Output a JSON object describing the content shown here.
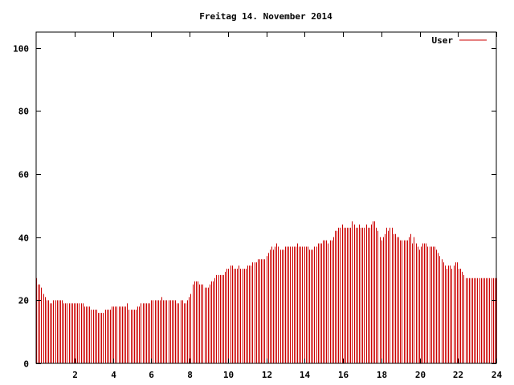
{
  "chart_data": {
    "type": "bar",
    "title": "Freitag 14. November 2014",
    "xlabel": "",
    "ylabel": "",
    "xlim": [
      0,
      24
    ],
    "ylim": [
      0,
      105
    ],
    "x_ticks": [
      2,
      4,
      6,
      8,
      10,
      12,
      14,
      16,
      18,
      20,
      22,
      24
    ],
    "y_ticks": [
      0,
      20,
      40,
      60,
      80,
      100
    ],
    "grid": false,
    "legend_position": "top-right",
    "series": [
      {
        "name": "User",
        "color": "#cc0000",
        "values": [
          27,
          25,
          25,
          24,
          22,
          21,
          20,
          20,
          19,
          19,
          20,
          20,
          20,
          20,
          20,
          20,
          19,
          19,
          19,
          19,
          19,
          19,
          19,
          19,
          19,
          19,
          19,
          19,
          18,
          18,
          18,
          18,
          17,
          17,
          17,
          17,
          16,
          16,
          16,
          16,
          17,
          17,
          17,
          17,
          18,
          18,
          18,
          18,
          18,
          18,
          18,
          18,
          18,
          19,
          17,
          17,
          17,
          17,
          17,
          18,
          18,
          19,
          19,
          19,
          19,
          19,
          19,
          20,
          20,
          20,
          20,
          20,
          20,
          21,
          20,
          20,
          20,
          20,
          20,
          20,
          20,
          20,
          19,
          19,
          20,
          20,
          19,
          19,
          20,
          21,
          22,
          25,
          26,
          26,
          26,
          25,
          25,
          25,
          24,
          24,
          24,
          25,
          26,
          26,
          27,
          28,
          28,
          28,
          28,
          28,
          29,
          30,
          30,
          31,
          31,
          30,
          30,
          30,
          31,
          30,
          30,
          30,
          30,
          31,
          31,
          31,
          32,
          32,
          32,
          33,
          33,
          33,
          33,
          33,
          34,
          35,
          36,
          37,
          36,
          37,
          38,
          37,
          36,
          36,
          36,
          37,
          37,
          37,
          37,
          37,
          37,
          37,
          38,
          37,
          37,
          37,
          37,
          37,
          37,
          36,
          36,
          36,
          37,
          37,
          38,
          38,
          38,
          39,
          39,
          39,
          38,
          39,
          39,
          40,
          42,
          42,
          43,
          43,
          44,
          43,
          43,
          43,
          43,
          43,
          45,
          44,
          43,
          43,
          44,
          43,
          43,
          43,
          44,
          43,
          43,
          44,
          45,
          45,
          43,
          42,
          40,
          39,
          40,
          41,
          43,
          42,
          43,
          43,
          41,
          41,
          40,
          40,
          39,
          39,
          39,
          39,
          39,
          40,
          41,
          38,
          40,
          38,
          37,
          36,
          37,
          38,
          38,
          38,
          37,
          37,
          37,
          37,
          37,
          36,
          35,
          34,
          33,
          32,
          31,
          30,
          31,
          31,
          30,
          31,
          32,
          32,
          30,
          30,
          29,
          28,
          27,
          27,
          27,
          27,
          27,
          27,
          27,
          27,
          27,
          27,
          27,
          27,
          27,
          27,
          27,
          27,
          27,
          27,
          27
        ]
      }
    ]
  }
}
